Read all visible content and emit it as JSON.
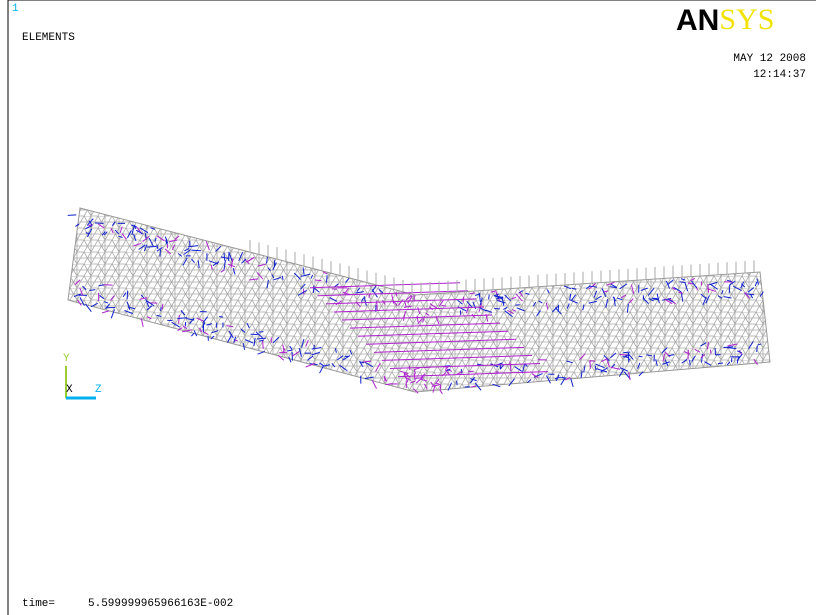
{
  "window": {
    "number": "1",
    "plot_label": "ELEMENTS",
    "logo": [
      "AN",
      "SYS"
    ],
    "date": "MAY 12 2008",
    "time": "12:14:37"
  },
  "triad": {
    "y": "Y",
    "x": "X",
    "z": "Z"
  },
  "footer": {
    "label": "time=",
    "value": "5.599999965966163E-002"
  }
}
